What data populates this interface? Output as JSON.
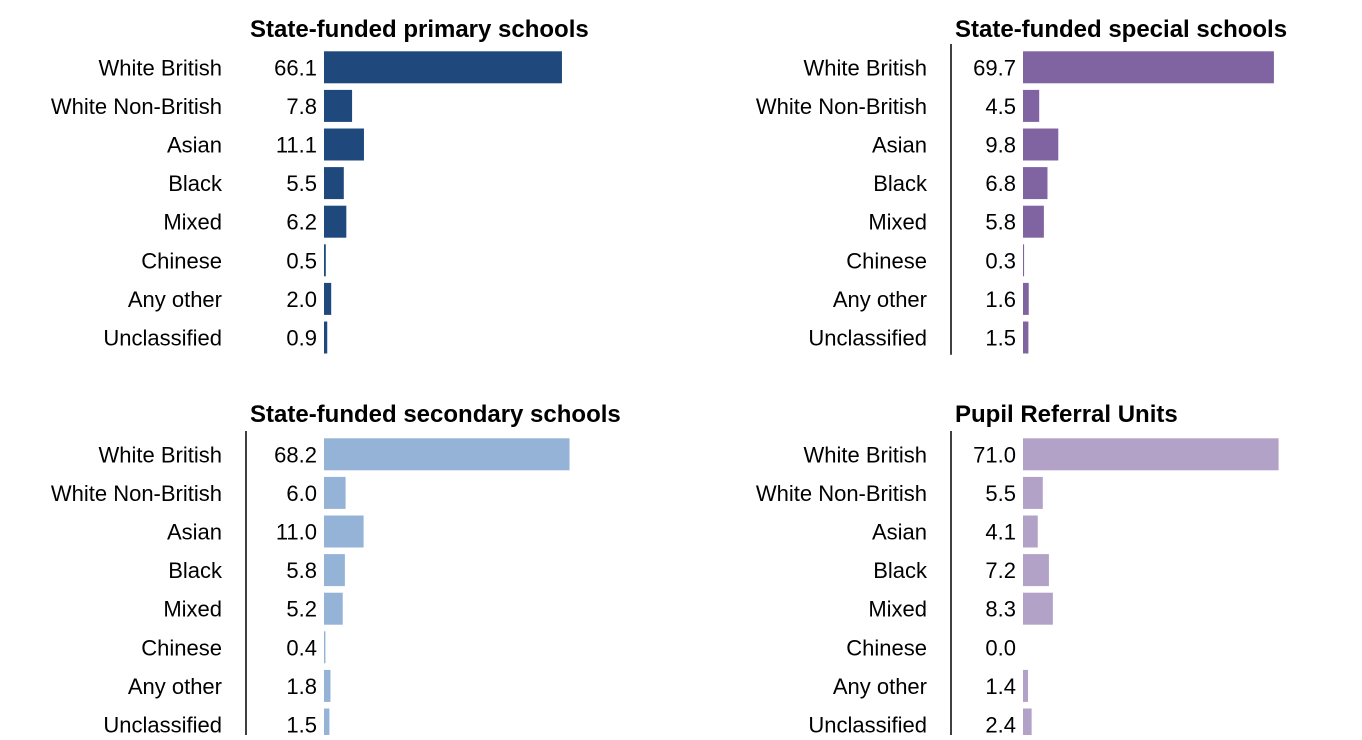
{
  "chart_data": [
    {
      "type": "bar",
      "orientation": "horizontal",
      "title": "State-funded primary schools",
      "categories": [
        "White British",
        "White Non-British",
        "Asian",
        "Black",
        "Mixed",
        "Chinese",
        "Any other",
        "Unclassified"
      ],
      "values": [
        66.1,
        7.8,
        11.1,
        5.5,
        6.2,
        0.5,
        2.0,
        0.9
      ],
      "value_labels": [
        "66.1",
        "7.8",
        "11.1",
        "5.5",
        "6.2",
        "0.5",
        "2.0",
        "0.9"
      ],
      "color": "#1f497d",
      "xlim": [
        0,
        100
      ]
    },
    {
      "type": "bar",
      "orientation": "horizontal",
      "title": "State-funded special schools",
      "categories": [
        "White British",
        "White Non-British",
        "Asian",
        "Black",
        "Mixed",
        "Chinese",
        "Any other",
        "Unclassified"
      ],
      "values": [
        69.7,
        4.5,
        9.8,
        6.8,
        5.8,
        0.3,
        1.6,
        1.5
      ],
      "value_labels": [
        "69.7",
        "4.5",
        "9.8",
        "6.8",
        "5.8",
        "0.3",
        "1.6",
        "1.5"
      ],
      "color": "#8064a2",
      "xlim": [
        0,
        100
      ]
    },
    {
      "type": "bar",
      "orientation": "horizontal",
      "title": "State-funded secondary schools",
      "categories": [
        "White British",
        "White Non-British",
        "Asian",
        "Black",
        "Mixed",
        "Chinese",
        "Any other",
        "Unclassified"
      ],
      "values": [
        68.2,
        6.0,
        11.0,
        5.8,
        5.2,
        0.4,
        1.8,
        1.5
      ],
      "value_labels": [
        "68.2",
        "6.0",
        "11.0",
        "5.8",
        "5.2",
        "0.4",
        "1.8",
        "1.5"
      ],
      "color": "#95b3d7",
      "xlim": [
        0,
        100
      ]
    },
    {
      "type": "bar",
      "orientation": "horizontal",
      "title": "Pupil Referral Units",
      "categories": [
        "White British",
        "White Non-British",
        "Asian",
        "Black",
        "Mixed",
        "Chinese",
        "Any other",
        "Unclassified"
      ],
      "values": [
        71.0,
        5.5,
        4.1,
        7.2,
        8.3,
        0.0,
        1.4,
        2.4
      ],
      "value_labels": [
        "71.0",
        "5.5",
        "4.1",
        "7.2",
        "8.3",
        "0.0",
        "1.4",
        "2.4"
      ],
      "color": "#b3a2c7",
      "xlim": [
        0,
        100
      ]
    }
  ]
}
